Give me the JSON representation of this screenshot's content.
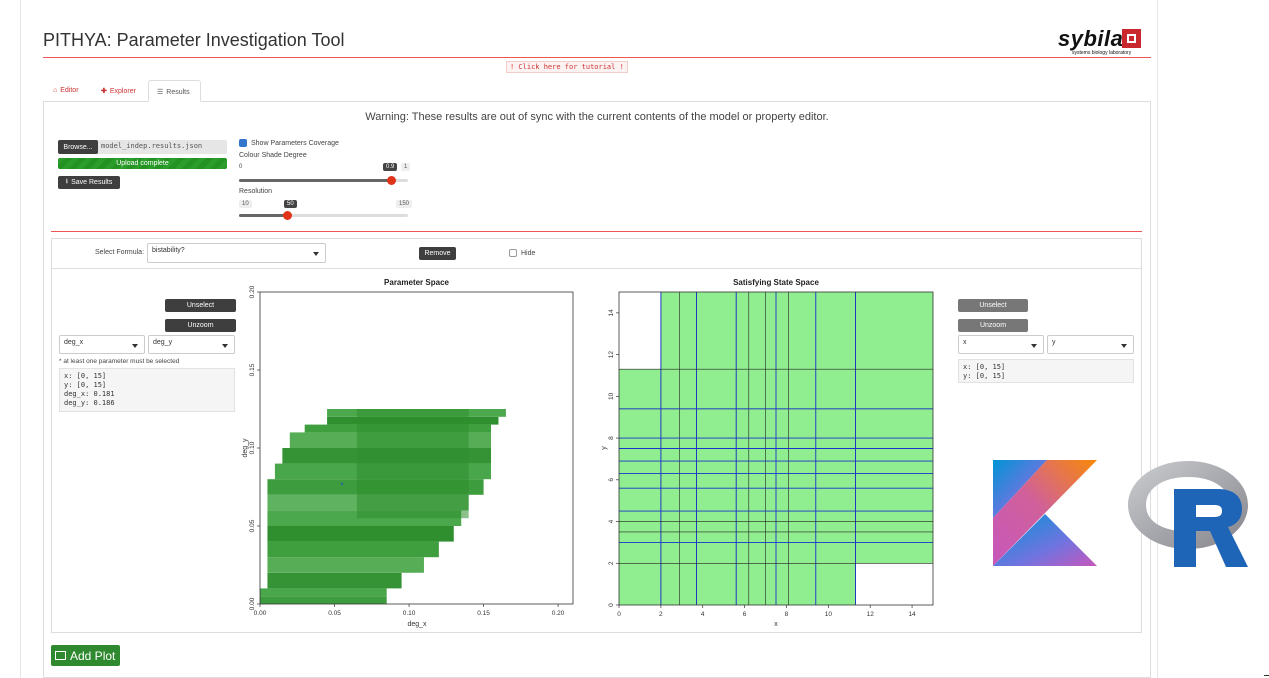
{
  "app": {
    "title": "PITHYA: Parameter Investigation Tool",
    "logo_text": "sybila",
    "logo_subtitle": "systems biology laboratory",
    "tutorial_link": "! Click here for tutorial !"
  },
  "tabs": [
    {
      "label": "Editor",
      "icon": "home-icon",
      "active": false
    },
    {
      "label": "Explorer",
      "icon": "plus-icon",
      "active": false
    },
    {
      "label": "Results",
      "icon": "list-icon",
      "active": true
    }
  ],
  "warning": "Warning: These results are out of sync with the current contents of the model or property editor.",
  "file_input": {
    "browse_label": "Browse...",
    "filename": "model_indep.results.json",
    "progress_label": "Upload complete",
    "progress": 1.0,
    "save_label": "Save Results"
  },
  "coverage": {
    "checkbox_label": "Show Parameters Coverage",
    "checked": true,
    "shade_label": "Colour Shade Degree",
    "shade_min": "0",
    "shade_max": "1",
    "shade_value": "0.9",
    "shade_fraction": 0.9,
    "resolution_label": "Resolution",
    "res_min": "10",
    "res_max": "150",
    "res_value": "50",
    "res_fraction": 0.2857
  },
  "plot_toolbar": {
    "select_formula_label": "Select Formula:",
    "formula_value": "bistability?",
    "remove_label": "Remove",
    "hide_label": "Hide",
    "hide_checked": false
  },
  "left_controls": {
    "unselect_label": "Unselect",
    "unzoom_label": "Unzoom",
    "x_select": "deg_x",
    "y_select": "deg_y",
    "note": "* at least one parameter must be selected",
    "info_lines": [
      "x: [0, 15]",
      "y: [0, 15]",
      "deg_x: 0.181",
      "deg_y: 0.186"
    ]
  },
  "right_controls": {
    "unselect_label": "Unselect",
    "unzoom_label": "Unzoom",
    "x_select": "x",
    "y_select": "y",
    "info_lines": [
      "x: [0, 15]",
      "y: [0, 15]"
    ]
  },
  "add_plot_label": "Add Plot",
  "colors": {
    "accent_red": "#e0331a",
    "green_dark": "#2f8a2f",
    "param_green": "#3a9a3a",
    "state_green": "#90ee90",
    "grid_blue": "#1a33cc"
  },
  "chart_data": [
    {
      "type": "heatmap",
      "title": "Parameter Space",
      "xlabel": "deg_x",
      "ylabel": "deg_y",
      "xlim": [
        0,
        0.21
      ],
      "ylim": [
        0,
        0.2
      ],
      "x_ticks": [
        "0.00",
        "0.05",
        "0.10",
        "0.15",
        "0.20"
      ],
      "y_ticks": [
        "0.00",
        "0.05",
        "0.10",
        "0.15",
        "0.20"
      ],
      "selected_point": {
        "x": 0.055,
        "y": 0.077
      },
      "covered_region_rows": [
        {
          "y0": 0.0,
          "y1": 0.005,
          "x0": 0.0,
          "x1": 0.085
        },
        {
          "y0": 0.005,
          "y1": 0.01,
          "x0": 0.0,
          "x1": 0.085
        },
        {
          "y0": 0.01,
          "y1": 0.02,
          "x0": 0.005,
          "x1": 0.095
        },
        {
          "y0": 0.02,
          "y1": 0.03,
          "x0": 0.005,
          "x1": 0.11
        },
        {
          "y0": 0.03,
          "y1": 0.04,
          "x0": 0.005,
          "x1": 0.12
        },
        {
          "y0": 0.04,
          "y1": 0.05,
          "x0": 0.005,
          "x1": 0.13
        },
        {
          "y0": 0.05,
          "y1": 0.06,
          "x0": 0.005,
          "x1": 0.135
        },
        {
          "y0": 0.06,
          "y1": 0.07,
          "x0": 0.005,
          "x1": 0.14
        },
        {
          "y0": 0.07,
          "y1": 0.08,
          "x0": 0.005,
          "x1": 0.15
        },
        {
          "y0": 0.08,
          "y1": 0.09,
          "x0": 0.01,
          "x1": 0.155
        },
        {
          "y0": 0.09,
          "y1": 0.1,
          "x0": 0.015,
          "x1": 0.155
        },
        {
          "y0": 0.1,
          "y1": 0.11,
          "x0": 0.02,
          "x1": 0.155
        },
        {
          "y0": 0.11,
          "y1": 0.115,
          "x0": 0.03,
          "x1": 0.155
        },
        {
          "y0": 0.115,
          "y1": 0.12,
          "x0": 0.045,
          "x1": 0.16
        },
        {
          "y0": 0.12,
          "y1": 0.125,
          "x0": 0.045,
          "x1": 0.165
        }
      ]
    },
    {
      "type": "heatmap",
      "title": "Satisfying State Space",
      "xlabel": "x",
      "ylabel": "y",
      "xlim": [
        0,
        15
      ],
      "ylim": [
        0,
        15
      ],
      "x_ticks": [
        "0",
        "2",
        "4",
        "6",
        "8",
        "10",
        "12",
        "14"
      ],
      "y_ticks": [
        "0",
        "2",
        "4",
        "6",
        "8",
        "10",
        "12",
        "14"
      ],
      "filled_rects": [
        {
          "x0": 2,
          "x1": 15,
          "y0": 11.3,
          "y1": 15
        },
        {
          "x0": 0,
          "x1": 15,
          "y0": 2,
          "y1": 11.3
        },
        {
          "x0": 0,
          "x1": 11.3,
          "y0": 0,
          "y1": 2
        }
      ],
      "black_v_lines": [
        2,
        2.9,
        3.7,
        5.6,
        6.2,
        7.0,
        8.1,
        11.3
      ],
      "blue_v_lines": [
        2,
        3.7,
        5.6,
        7.5,
        9.4,
        11.3
      ],
      "black_h_lines": [
        2,
        3.5,
        4,
        9.4,
        11.3
      ],
      "blue_h_lines": [
        3,
        4.5,
        5.6,
        6.3,
        6.9,
        7.5,
        8.0,
        9.4
      ]
    }
  ]
}
